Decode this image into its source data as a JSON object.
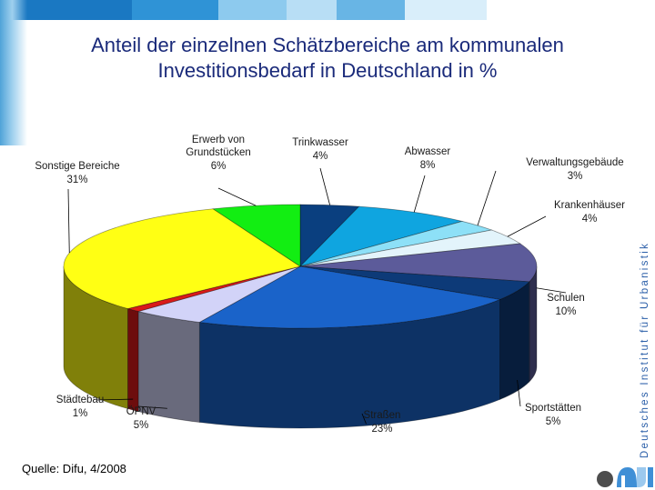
{
  "title_lines": [
    "Anteil der einzelnen Schätzbereiche am kommunalen",
    "Investitionsbedarf in Deutschland in %"
  ],
  "source": "Quelle: Difu, 4/2008",
  "institute": "Deutsches Institut für Urbanistik",
  "logo_text": "difu",
  "header_colors": [
    "#1a78c2",
    "#2f93d6",
    "#8dcaee",
    "#b8def5",
    "#68b5e5",
    "#d9eefa"
  ],
  "chart_data": {
    "type": "pie",
    "title": "Anteil der einzelnen Schätzbereiche am kommunalen Investitionsbedarf in Deutschland in %",
    "unit": "%",
    "start_angle_deg": -90,
    "direction": "clockwise",
    "slices": [
      {
        "name": "Trinkwasser",
        "value": 4,
        "label": "4%",
        "color": "#0a3f7f"
      },
      {
        "name": "Abwasser",
        "value": 8,
        "label": "8%",
        "color": "#0fa5e0"
      },
      {
        "name": "Verwaltungsgebäude",
        "value": 3,
        "label": "3%",
        "color": "#8de0f7"
      },
      {
        "name": "Krankenhäuser",
        "value": 4,
        "label": "4%",
        "color": "#e3f4fb"
      },
      {
        "name": "Schulen",
        "value": 10,
        "label": "10%",
        "color": "#5c5b9a"
      },
      {
        "name": "Sportstätten",
        "value": 5,
        "label": "5%",
        "color": "#0d3a78"
      },
      {
        "name": "Straßen",
        "value": 23,
        "label": "23%",
        "color": "#1a63c9"
      },
      {
        "name": "ÖPNV",
        "value": 5,
        "label": "5%",
        "color": "#d2d3f8"
      },
      {
        "name": "Städtebau",
        "value": 1,
        "label": "1%",
        "color": "#d91a1a"
      },
      {
        "name": "Sonstige Bereiche",
        "value": 31,
        "label": "31%",
        "color": "#ffff14"
      },
      {
        "name": "Erwerb von Grundstücken",
        "value": 6,
        "label": "6%",
        "color": "#12ee12"
      }
    ]
  }
}
